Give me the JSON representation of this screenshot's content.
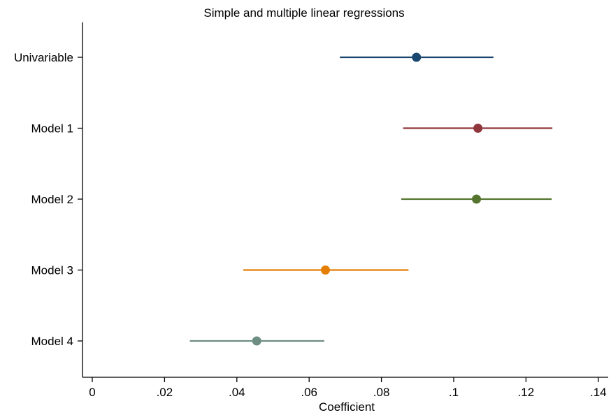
{
  "chart_data": {
    "type": "scatter",
    "title": "Simple and multiple linear regressions",
    "xlabel": "Coefficient",
    "ylabel": "",
    "xlim": [
      -0.003,
      0.142
    ],
    "x_ticks": [
      0,
      0.02,
      0.04,
      0.06,
      0.08,
      0.1,
      0.12,
      0.14
    ],
    "x_tick_labels": [
      "0",
      ".02",
      ".04",
      ".06",
      ".08",
      ".1",
      ".12",
      ".14"
    ],
    "grid": false,
    "legend": "none",
    "categories": [
      "Univariable",
      "Model 1",
      "Model 2",
      "Model 3",
      "Model 4"
    ],
    "series": [
      {
        "label": "Univariable",
        "estimate": 0.0897,
        "ci_low": 0.0685,
        "ci_high": 0.111,
        "color": "#1a476f"
      },
      {
        "label": "Model 1",
        "estimate": 0.1067,
        "ci_low": 0.086,
        "ci_high": 0.1273,
        "color": "#90353b"
      },
      {
        "label": "Model 2",
        "estimate": 0.1063,
        "ci_low": 0.0855,
        "ci_high": 0.1271,
        "color": "#55752f"
      },
      {
        "label": "Model 3",
        "estimate": 0.0645,
        "ci_low": 0.0418,
        "ci_high": 0.0875,
        "color": "#e37e00"
      },
      {
        "label": "Model 4",
        "estimate": 0.0455,
        "ci_low": 0.027,
        "ci_high": 0.0642,
        "color": "#6e8e84"
      }
    ]
  }
}
